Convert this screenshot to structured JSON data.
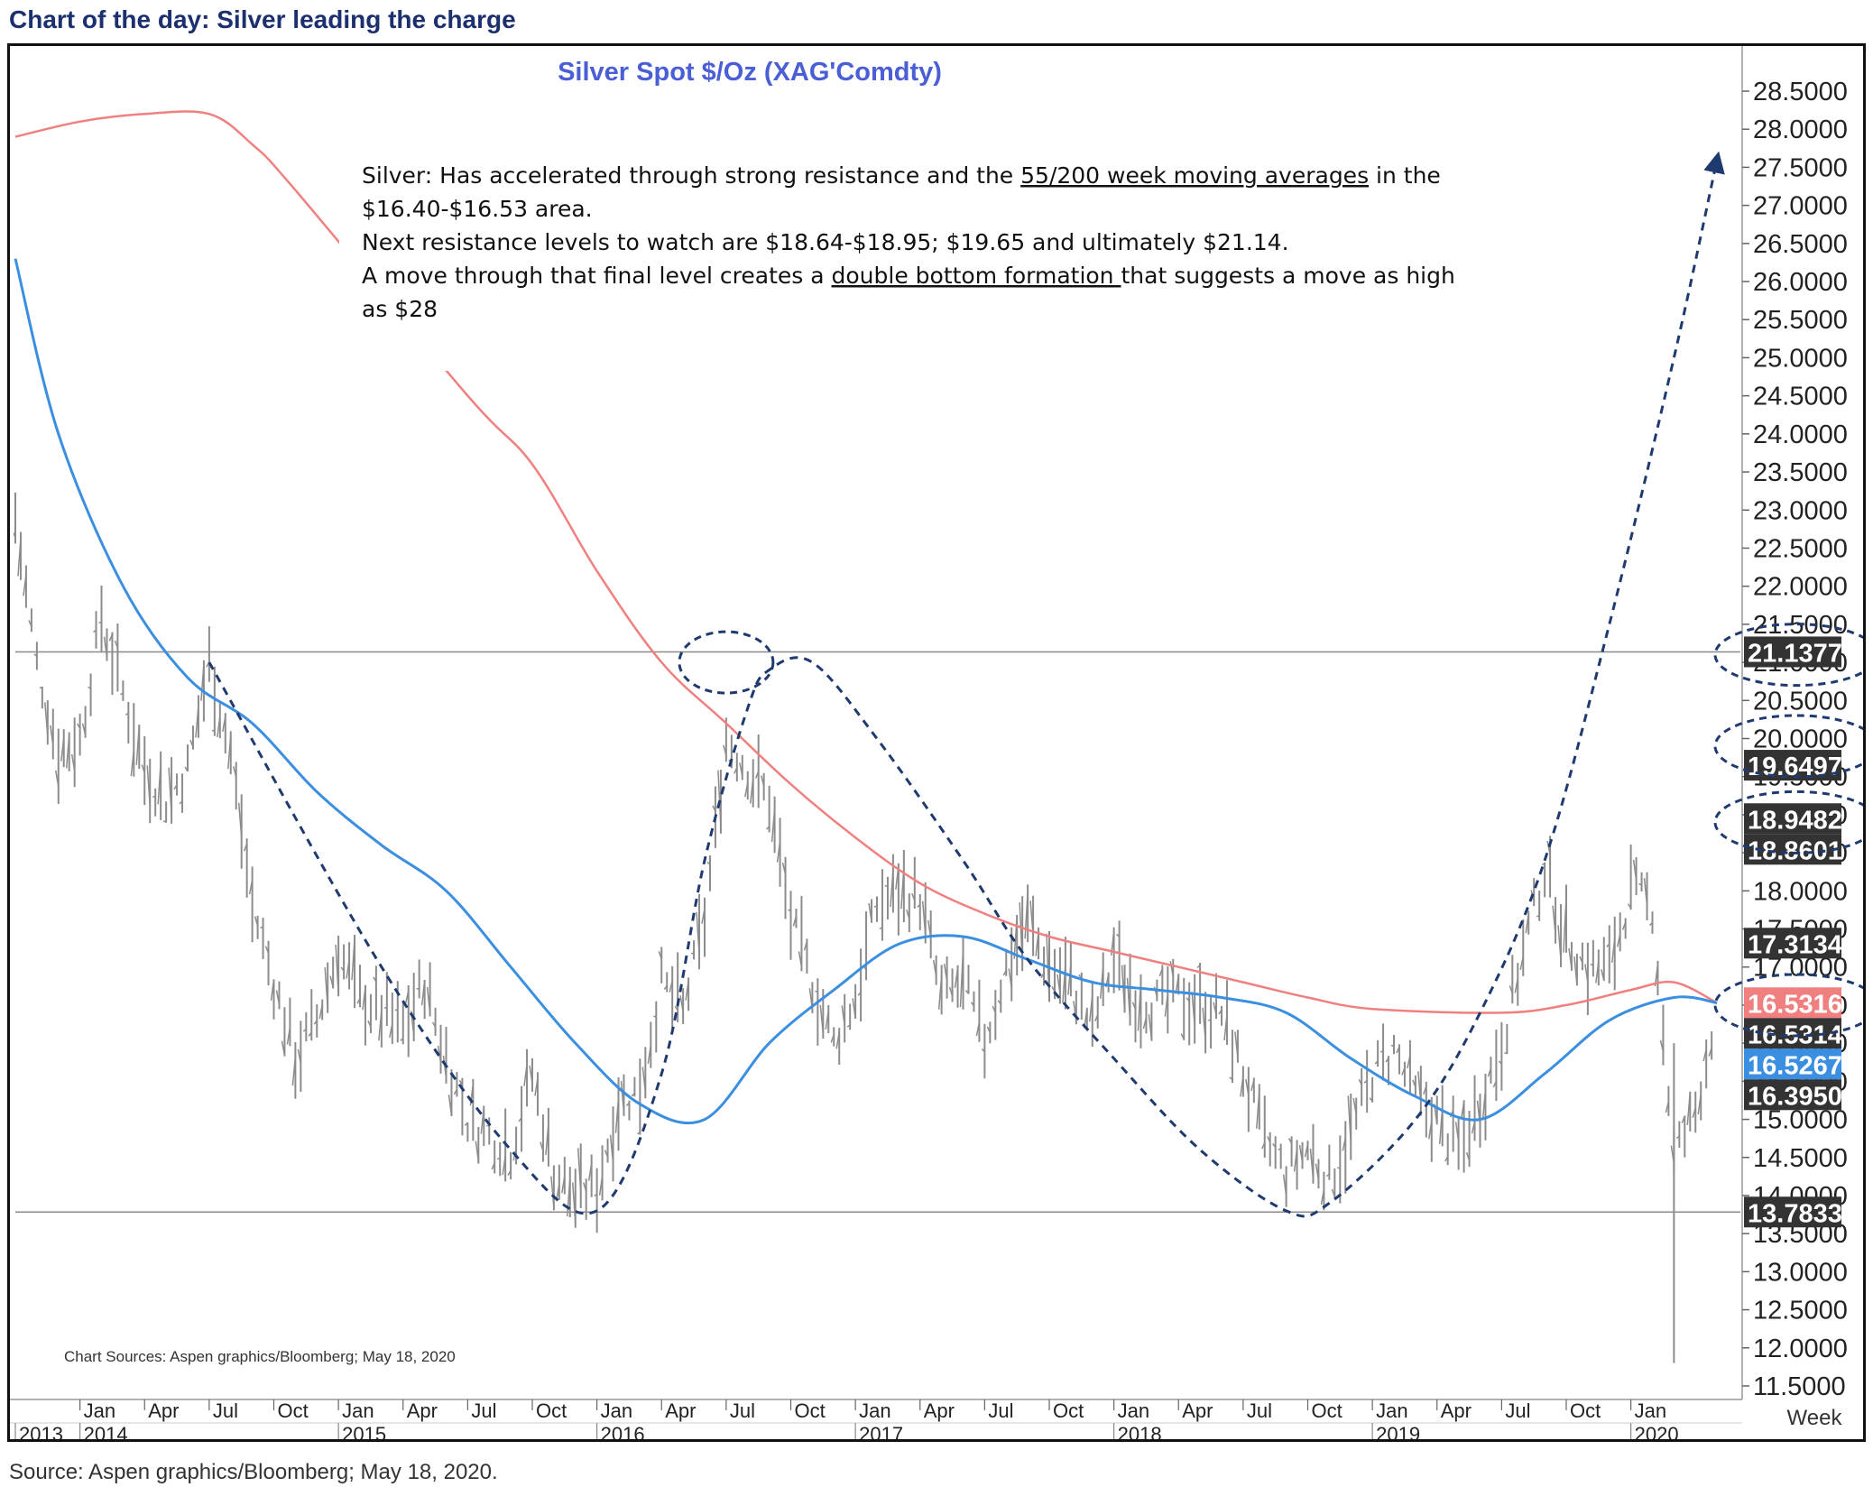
{
  "header": {
    "title": "Chart of the day: Silver leading the charge"
  },
  "footer": {
    "source": "Source: Aspen graphics/Bloomberg; May 18, 2020."
  },
  "chart_data": {
    "type": "bar",
    "subtype": "weekly OHLC price bars with moving averages",
    "title": "Silver  Spot    $/Oz  (XAG'Comdty)",
    "chart_source": "Chart Sources: Aspen graphics/Bloomberg; May 18, 2020",
    "period_label": "Week",
    "y_axis": {
      "min": 11.5,
      "max": 28.5,
      "step": 0.5,
      "position": "right",
      "ticks": [
        "28.5000",
        "28.0000",
        "27.5000",
        "27.0000",
        "26.5000",
        "26.0000",
        "25.5000",
        "25.0000",
        "24.5000",
        "24.0000",
        "23.5000",
        "23.0000",
        "22.5000",
        "22.0000",
        "21.5000",
        "21.0000",
        "20.5000",
        "20.0000",
        "19.5000",
        "19.0000",
        "18.5000",
        "18.0000",
        "17.5000",
        "17.0000",
        "16.5000",
        "16.0000",
        "15.5000",
        "15.0000",
        "14.5000",
        "14.0000",
        "13.5000",
        "13.0000",
        "12.5000",
        "12.0000",
        "11.5000"
      ]
    },
    "x_axis": {
      "months": [
        {
          "label": "Jan",
          "date": "2014-01"
        },
        {
          "label": "Apr",
          "date": "2014-04"
        },
        {
          "label": "Jul",
          "date": "2014-07"
        },
        {
          "label": "Oct",
          "date": "2014-10"
        },
        {
          "label": "Jan",
          "date": "2015-01"
        },
        {
          "label": "Apr",
          "date": "2015-04"
        },
        {
          "label": "Jul",
          "date": "2015-07"
        },
        {
          "label": "Oct",
          "date": "2015-10"
        },
        {
          "label": "Jan",
          "date": "2016-01"
        },
        {
          "label": "Apr",
          "date": "2016-04"
        },
        {
          "label": "Jul",
          "date": "2016-07"
        },
        {
          "label": "Oct",
          "date": "2016-10"
        },
        {
          "label": "Jan",
          "date": "2017-01"
        },
        {
          "label": "Apr",
          "date": "2017-04"
        },
        {
          "label": "Jul",
          "date": "2017-07"
        },
        {
          "label": "Oct",
          "date": "2017-10"
        },
        {
          "label": "Jan",
          "date": "2018-01"
        },
        {
          "label": "Apr",
          "date": "2018-04"
        },
        {
          "label": "Jul",
          "date": "2018-07"
        },
        {
          "label": "Oct",
          "date": "2018-10"
        },
        {
          "label": "Jan",
          "date": "2019-01"
        },
        {
          "label": "Apr",
          "date": "2019-04"
        },
        {
          "label": "Jul",
          "date": "2019-07"
        },
        {
          "label": "Oct",
          "date": "2019-10"
        },
        {
          "label": "Jan",
          "date": "2020-01"
        }
      ],
      "years": [
        {
          "label": "2013",
          "date": "2013-10"
        },
        {
          "label": "2014",
          "date": "2014-01"
        },
        {
          "label": "2015",
          "date": "2015-01"
        },
        {
          "label": "2016",
          "date": "2016-01"
        },
        {
          "label": "2017",
          "date": "2017-01"
        },
        {
          "label": "2018",
          "date": "2018-01"
        },
        {
          "label": "2019",
          "date": "2019-01"
        },
        {
          "label": "2020",
          "date": "2020-01"
        }
      ],
      "start": "2013-10",
      "end": "2020-06"
    },
    "annotation": {
      "line1_a": "Silver: Has accelerated through strong resistance and the ",
      "line1_link": "55/200 week moving averages",
      "line1_b": " in the",
      "line2": "$16.40-$16.53  area.",
      "line3": "Next resistance levels to watch are $18.64-$18.95; $19.65 and ultimately $21.14.",
      "line4_a": "A move through that final level creates a ",
      "line4_link": "double bottom formation ",
      "line4_b": "that suggests a move as high",
      "line5": "as $28"
    },
    "price_labels": [
      {
        "text": "21.1377",
        "value": 21.1377,
        "color": "#333333"
      },
      {
        "text": "19.6497",
        "value": 19.6497,
        "color": "#333333"
      },
      {
        "text": "18.9482",
        "value": 18.9482,
        "color": "#333333"
      },
      {
        "text": "18.8601",
        "value": 18.8601,
        "color": "#333333"
      },
      {
        "text": "17.3134",
        "value": 17.3134,
        "color": "#333333"
      },
      {
        "text": "16.5316",
        "value": 16.5316,
        "color": "#f08080"
      },
      {
        "text": "16.5314",
        "value": 16.5314,
        "color": "#333333"
      },
      {
        "text": "16.5267",
        "value": 16.5267,
        "color": "#3b8fe0"
      },
      {
        "text": "16.3950",
        "value": 16.395,
        "color": "#333333"
      },
      {
        "text": "13.7833",
        "value": 13.7833,
        "color": "#333333"
      }
    ],
    "horizontal_lines": [
      21.1377,
      13.7833
    ],
    "series": [
      {
        "kind": "price",
        "color": "#8c8c8c",
        "points": [
          [
            "2013-10",
            22.9
          ],
          [
            "2013-11",
            21.0
          ],
          [
            "2013-12",
            19.8
          ],
          [
            "2014-01",
            20.0
          ],
          [
            "2014-02",
            21.6
          ],
          [
            "2014-03",
            20.6
          ],
          [
            "2014-04",
            19.6
          ],
          [
            "2014-05",
            19.2
          ],
          [
            "2014-06",
            19.6
          ],
          [
            "2014-07",
            21.0
          ],
          [
            "2014-08",
            19.8
          ],
          [
            "2014-09",
            17.8
          ],
          [
            "2014-10",
            16.8
          ],
          [
            "2014-11",
            15.8
          ],
          [
            "2014-12",
            16.3
          ],
          [
            "2015-01",
            17.2
          ],
          [
            "2015-02",
            16.6
          ],
          [
            "2015-03",
            16.4
          ],
          [
            "2015-04",
            16.2
          ],
          [
            "2015-05",
            16.8
          ],
          [
            "2015-06",
            15.8
          ],
          [
            "2015-07",
            15.0
          ],
          [
            "2015-08",
            14.8
          ],
          [
            "2015-09",
            14.6
          ],
          [
            "2015-10",
            15.6
          ],
          [
            "2015-11",
            14.3
          ],
          [
            "2015-12",
            14.0
          ],
          [
            "2016-01",
            14.1
          ],
          [
            "2016-02",
            15.2
          ],
          [
            "2016-03",
            15.4
          ],
          [
            "2016-04",
            16.8
          ],
          [
            "2016-05",
            16.4
          ],
          [
            "2016-06",
            17.6
          ],
          [
            "2016-07",
            20.0
          ],
          [
            "2016-08",
            19.6
          ],
          [
            "2016-09",
            19.2
          ],
          [
            "2016-10",
            17.6
          ],
          [
            "2016-11",
            16.8
          ],
          [
            "2016-12",
            16.0
          ],
          [
            "2017-01",
            16.6
          ],
          [
            "2017-02",
            17.8
          ],
          [
            "2017-03",
            18.0
          ],
          [
            "2017-04",
            17.9
          ],
          [
            "2017-05",
            16.6
          ],
          [
            "2017-06",
            16.8
          ],
          [
            "2017-07",
            16.0
          ],
          [
            "2017-08",
            17.0
          ],
          [
            "2017-09",
            17.6
          ],
          [
            "2017-10",
            17.0
          ],
          [
            "2017-11",
            16.8
          ],
          [
            "2017-12",
            16.2
          ],
          [
            "2018-01",
            17.1
          ],
          [
            "2018-02",
            16.6
          ],
          [
            "2018-03",
            16.5
          ],
          [
            "2018-04",
            16.6
          ],
          [
            "2018-05",
            16.5
          ],
          [
            "2018-06",
            16.4
          ],
          [
            "2018-07",
            15.6
          ],
          [
            "2018-08",
            14.7
          ],
          [
            "2018-09",
            14.3
          ],
          [
            "2018-10",
            14.6
          ],
          [
            "2018-11",
            14.2
          ],
          [
            "2018-12",
            14.8
          ],
          [
            "2019-01",
            15.6
          ],
          [
            "2019-02",
            15.9
          ],
          [
            "2019-03",
            15.3
          ],
          [
            "2019-04",
            15.0
          ],
          [
            "2019-05",
            14.6
          ],
          [
            "2019-06",
            15.2
          ],
          [
            "2019-07",
            16.0
          ],
          [
            "2019-08",
            17.2
          ],
          [
            "2019-09",
            18.3
          ],
          [
            "2019-10",
            17.4
          ],
          [
            "2019-11",
            17.0
          ],
          [
            "2019-12",
            17.0
          ],
          [
            "2020-01",
            18.0
          ],
          [
            "2020-02",
            17.8
          ],
          [
            "2020-03",
            14.5
          ],
          [
            "2020-04",
            15.1
          ],
          [
            "2020-05",
            16.5
          ]
        ]
      },
      {
        "kind": "moving-average-55",
        "color": "#3b8fe0",
        "points": [
          [
            "2013-10",
            26.3
          ],
          [
            "2013-12",
            24.0
          ],
          [
            "2014-03",
            22.0
          ],
          [
            "2014-06",
            20.8
          ],
          [
            "2014-09",
            20.2
          ],
          [
            "2014-12",
            19.3
          ],
          [
            "2015-03",
            18.6
          ],
          [
            "2015-06",
            18.0
          ],
          [
            "2015-09",
            17.0
          ],
          [
            "2015-12",
            16.0
          ],
          [
            "2016-03",
            15.2
          ],
          [
            "2016-06",
            15.0
          ],
          [
            "2016-09",
            16.0
          ],
          [
            "2016-12",
            16.7
          ],
          [
            "2017-03",
            17.3
          ],
          [
            "2017-06",
            17.4
          ],
          [
            "2017-09",
            17.1
          ],
          [
            "2017-12",
            16.8
          ],
          [
            "2018-03",
            16.7
          ],
          [
            "2018-06",
            16.6
          ],
          [
            "2018-09",
            16.4
          ],
          [
            "2018-12",
            15.8
          ],
          [
            "2019-03",
            15.3
          ],
          [
            "2019-06",
            15.0
          ],
          [
            "2019-09",
            15.6
          ],
          [
            "2019-12",
            16.3
          ],
          [
            "2020-03",
            16.6
          ],
          [
            "2020-05",
            16.53
          ]
        ]
      },
      {
        "kind": "moving-average-200",
        "color": "#f08080",
        "points": [
          [
            "2013-10",
            27.9
          ],
          [
            "2014-01",
            28.1
          ],
          [
            "2014-04",
            28.2
          ],
          [
            "2014-07",
            28.2
          ],
          [
            "2014-09",
            27.8
          ],
          [
            "2014-11",
            27.2
          ],
          [
            "2015-07",
            24.5
          ],
          [
            "2015-10",
            23.6
          ],
          [
            "2016-01",
            22.2
          ],
          [
            "2016-04",
            21.0
          ],
          [
            "2016-07",
            20.2
          ],
          [
            "2016-10",
            19.4
          ],
          [
            "2017-01",
            18.7
          ],
          [
            "2017-04",
            18.1
          ],
          [
            "2017-07",
            17.7
          ],
          [
            "2017-10",
            17.4
          ],
          [
            "2018-01",
            17.2
          ],
          [
            "2018-04",
            17.0
          ],
          [
            "2018-07",
            16.8
          ],
          [
            "2018-10",
            16.6
          ],
          [
            "2019-01",
            16.45
          ],
          [
            "2019-07",
            16.4
          ],
          [
            "2019-10",
            16.5
          ],
          [
            "2020-01",
            16.7
          ],
          [
            "2020-03",
            16.8
          ],
          [
            "2020-05",
            16.53
          ]
        ]
      },
      {
        "kind": "projection-path",
        "color": "#1f3a6e",
        "points": [
          [
            "2014-07",
            21.0
          ],
          [
            "2015-03",
            17.0
          ],
          [
            "2015-09",
            14.6
          ],
          [
            "2016-01",
            13.8
          ],
          [
            "2016-04",
            15.6
          ],
          [
            "2016-06",
            18.4
          ],
          [
            "2016-08",
            20.4
          ],
          [
            "2016-09",
            20.9
          ],
          [
            "2016-11",
            21.0
          ],
          [
            "2017-02",
            20.0
          ],
          [
            "2017-06",
            18.4
          ],
          [
            "2017-09",
            17.1
          ],
          [
            "2018-01",
            15.8
          ],
          [
            "2018-05",
            14.6
          ],
          [
            "2018-09",
            13.8
          ],
          [
            "2018-11",
            13.9
          ],
          [
            "2019-03",
            15.0
          ],
          [
            "2019-06",
            16.4
          ],
          [
            "2019-09",
            18.4
          ],
          [
            "2019-12",
            21.5
          ],
          [
            "2020-03",
            25.0
          ],
          [
            "2020-05",
            27.6
          ]
        ]
      }
    ],
    "circles": [
      {
        "date": "2016-07",
        "value": 21.0
      },
      {
        "date": "2020-05",
        "value": 21.1
      },
      {
        "date": "2020-05",
        "value": 19.9
      },
      {
        "date": "2020-05",
        "value": 18.9
      },
      {
        "date": "2020-05",
        "value": 16.5
      }
    ],
    "grid": false,
    "legend": "none"
  }
}
